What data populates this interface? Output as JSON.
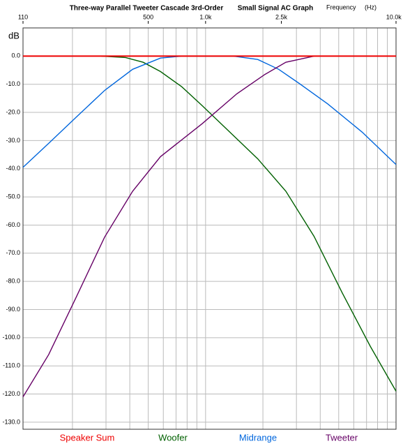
{
  "chart_data": {
    "type": "line",
    "title": "Three-way Parallel Tweeter Cascade 3rd-Order",
    "subtitle": "Small Signal AC Graph",
    "xlabel": "Frequency     (Hz)",
    "ylabel": "dB",
    "xscale": "log",
    "xlim": [
      110,
      10000
    ],
    "ylim": [
      -132.5,
      10
    ],
    "xticks": [
      110,
      500,
      {
        "value": 1000,
        "label": "1.0k"
      },
      {
        "value": 2500,
        "label": "2.5k"
      },
      {
        "value": 10000,
        "label": "10.0k"
      }
    ],
    "x_grid": [
      200,
      300,
      400,
      500,
      600,
      700,
      800,
      900,
      1000,
      2000,
      3000,
      4000,
      5000,
      6000,
      7000,
      8000,
      9000
    ],
    "yticks": [
      {
        "value": 0,
        "label": "0.0"
      },
      {
        "value": -10,
        "label": "-10.0"
      },
      {
        "value": -20,
        "label": "-20.0"
      },
      {
        "value": -30,
        "label": "-30.0"
      },
      {
        "value": -40,
        "label": "-40.0"
      },
      {
        "value": -50,
        "label": "-50.0"
      },
      {
        "value": -60,
        "label": "-60.0"
      },
      {
        "value": -70,
        "label": "-70.0"
      },
      {
        "value": -80,
        "label": "-80.0"
      },
      {
        "value": -90,
        "label": "-90.0"
      },
      {
        "value": -100,
        "label": "-100.0"
      },
      {
        "value": -110,
        "label": "-110.0"
      },
      {
        "value": -120,
        "label": "-120.0"
      },
      {
        "value": -130,
        "label": "-130.0"
      }
    ],
    "grid": true,
    "legend": "bottom",
    "series": [
      {
        "name": "Speaker Sum",
        "color": "#ee0000",
        "x": [
          110,
          10000
        ],
        "values": [
          0,
          0
        ]
      },
      {
        "name": "Woofer",
        "color": "#006000",
        "x": [
          283,
          380,
          470,
          580,
          750,
          960,
          1340,
          1880,
          2640,
          3710,
          5210,
          7320,
          10000
        ],
        "values": [
          0,
          -0.5,
          -2.2,
          -5.5,
          -10.9,
          -17.6,
          -27,
          -36.5,
          -48,
          -64,
          -84,
          -103,
          -119
        ]
      },
      {
        "name": "Midrange",
        "color": "#0066dd",
        "x": [
          110,
          150,
          210,
          295,
          414,
          580,
          750,
          1400,
          1880,
          2420,
          3100,
          4380,
          6640,
          10000
        ],
        "values": [
          -39.5,
          -31,
          -21.6,
          -12.2,
          -4.7,
          -0.7,
          0,
          0,
          -1.2,
          -4.7,
          -9.7,
          -17,
          -27,
          -38.5
        ]
      },
      {
        "name": "Tweeter",
        "color": "#660066",
        "x": [
          110,
          150,
          210,
          295,
          414,
          580,
          960,
          1460,
          2050,
          2640,
          3710
        ],
        "values": [
          -121,
          -106,
          -85.4,
          -64.3,
          -48,
          -35.7,
          -24,
          -13.4,
          -6.5,
          -2.2,
          0
        ]
      }
    ]
  }
}
